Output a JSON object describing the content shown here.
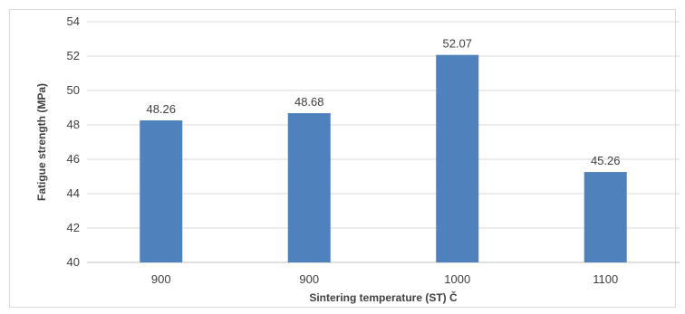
{
  "chart_data": {
    "type": "bar",
    "categories": [
      "900",
      "900",
      "1000",
      "1100"
    ],
    "values": [
      48.26,
      48.68,
      52.07,
      45.26
    ],
    "data_labels": [
      "48.26",
      "48.68",
      "52.07",
      "45.26"
    ],
    "title": "",
    "xlabel": "Sintering temperature (ST) Č",
    "ylabel": "Fatigue strength (MPa)",
    "ylim": [
      40,
      54
    ],
    "yticks": [
      "40",
      "42",
      "44",
      "46",
      "48",
      "50",
      "52",
      "54"
    ],
    "ytick_values": [
      40,
      42,
      44,
      46,
      48,
      50,
      52,
      54
    ],
    "grid": true,
    "legend": "none",
    "bar_color": "#4f81bd"
  }
}
